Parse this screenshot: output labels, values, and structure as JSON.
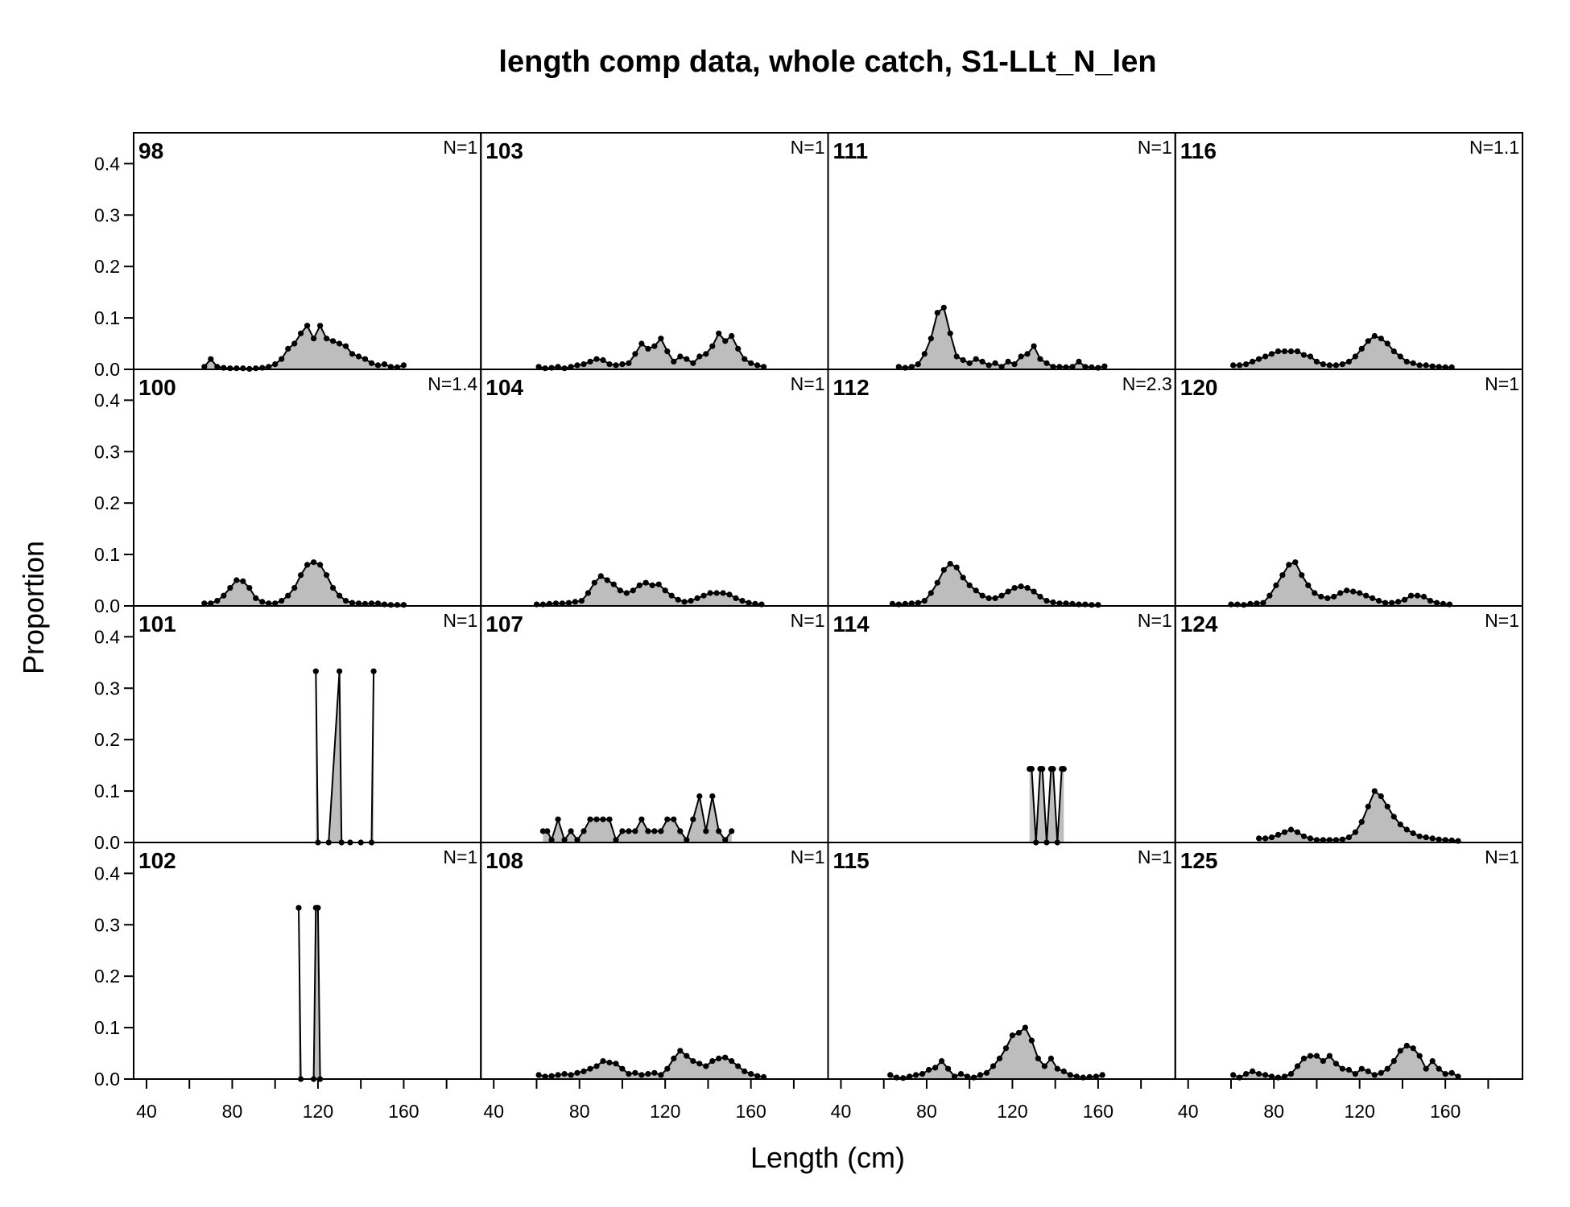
{
  "chart_data": {
    "type": "area",
    "title": "length comp data, whole catch, S1-LLt_N_len",
    "xlabel": "Length (cm)",
    "ylabel": "Proportion",
    "xlim": [
      34,
      196
    ],
    "ylim": [
      0,
      0.46
    ],
    "x_ticks": [
      40,
      80,
      120,
      160
    ],
    "y_ticks": [
      "0.0",
      "0.1",
      "0.2",
      "0.3",
      "0.4"
    ],
    "layout": "4x4 panels, columns filled top-to-bottom",
    "colors": {
      "fill": "#bdbdbd",
      "line": "#000000",
      "frame": "#000000"
    },
    "panels": [
      {
        "label": "98",
        "n_label": "N=1",
        "x": [
          67,
          70,
          73,
          76,
          79,
          82,
          85,
          88,
          91,
          94,
          97,
          100,
          103,
          106,
          109,
          112,
          115,
          118,
          121,
          124,
          127,
          130,
          133,
          136,
          139,
          142,
          145,
          148,
          151,
          154,
          157,
          160
        ],
        "values": [
          0.005,
          0.02,
          0.005,
          0.003,
          0.002,
          0.002,
          0.002,
          0.001,
          0.002,
          0.003,
          0.005,
          0.01,
          0.02,
          0.04,
          0.05,
          0.07,
          0.085,
          0.06,
          0.085,
          0.06,
          0.055,
          0.05,
          0.045,
          0.03,
          0.025,
          0.02,
          0.012,
          0.008,
          0.01,
          0.005,
          0.004,
          0.008
        ]
      },
      {
        "label": "100",
        "n_label": "N=1.4",
        "x": [
          67,
          70,
          73,
          76,
          79,
          82,
          85,
          88,
          91,
          94,
          97,
          100,
          103,
          106,
          109,
          112,
          115,
          118,
          121,
          124,
          127,
          130,
          133,
          136,
          139,
          142,
          145,
          148,
          151,
          154,
          157,
          160
        ],
        "values": [
          0.005,
          0.005,
          0.01,
          0.02,
          0.035,
          0.05,
          0.048,
          0.035,
          0.015,
          0.008,
          0.005,
          0.005,
          0.01,
          0.02,
          0.035,
          0.06,
          0.08,
          0.085,
          0.08,
          0.06,
          0.035,
          0.02,
          0.01,
          0.006,
          0.005,
          0.004,
          0.005,
          0.005,
          0.003,
          0.002,
          0.002,
          0.002
        ]
      },
      {
        "label": "101",
        "n_label": "N=1",
        "x": [
          119,
          120,
          125,
          130,
          131,
          135,
          140,
          145,
          146
        ],
        "values": [
          0.333,
          0,
          0,
          0.333,
          0,
          0,
          0,
          0,
          0.333
        ]
      },
      {
        "label": "102",
        "n_label": "N=1",
        "x": [
          111,
          112,
          118,
          119,
          120,
          121
        ],
        "values": [
          0.333,
          0,
          0,
          0.333,
          0.333,
          0
        ]
      },
      {
        "label": "103",
        "n_label": "N=1",
        "x": [
          61,
          64,
          67,
          70,
          73,
          76,
          79,
          82,
          85,
          88,
          91,
          94,
          97,
          100,
          103,
          106,
          109,
          112,
          115,
          118,
          121,
          124,
          127,
          130,
          133,
          136,
          139,
          142,
          145,
          148,
          151,
          154,
          157,
          160,
          163,
          166
        ],
        "values": [
          0.005,
          0.002,
          0.003,
          0.005,
          0.002,
          0.005,
          0.008,
          0.01,
          0.015,
          0.02,
          0.018,
          0.01,
          0.008,
          0.01,
          0.012,
          0.03,
          0.05,
          0.04,
          0.045,
          0.06,
          0.035,
          0.015,
          0.025,
          0.02,
          0.012,
          0.025,
          0.03,
          0.045,
          0.07,
          0.055,
          0.065,
          0.04,
          0.02,
          0.012,
          0.008,
          0.005
        ]
      },
      {
        "label": "104",
        "n_label": "N=1",
        "x": [
          60,
          63,
          66,
          69,
          72,
          75,
          78,
          81,
          84,
          87,
          90,
          93,
          96,
          99,
          102,
          105,
          108,
          111,
          114,
          117,
          120,
          123,
          126,
          129,
          132,
          135,
          138,
          141,
          144,
          147,
          150,
          153,
          156,
          159,
          162,
          165
        ],
        "values": [
          0.003,
          0.003,
          0.004,
          0.005,
          0.005,
          0.006,
          0.008,
          0.01,
          0.025,
          0.045,
          0.058,
          0.05,
          0.042,
          0.03,
          0.025,
          0.03,
          0.04,
          0.045,
          0.04,
          0.042,
          0.03,
          0.02,
          0.012,
          0.008,
          0.01,
          0.015,
          0.02,
          0.025,
          0.025,
          0.025,
          0.022,
          0.015,
          0.01,
          0.006,
          0.004,
          0.003
        ]
      },
      {
        "label": "107",
        "n_label": "N=1",
        "x": [
          63,
          65,
          67,
          70,
          73,
          76,
          79,
          82,
          85,
          88,
          91,
          94,
          97,
          100,
          103,
          106,
          109,
          112,
          115,
          118,
          121,
          124,
          127,
          130,
          133,
          136,
          139,
          142,
          145,
          148,
          151
        ],
        "values": [
          0.022,
          0.022,
          0.005,
          0.045,
          0.005,
          0.022,
          0.005,
          0.022,
          0.045,
          0.045,
          0.045,
          0.045,
          0.005,
          0.022,
          0.022,
          0.022,
          0.045,
          0.022,
          0.022,
          0.022,
          0.045,
          0.045,
          0.022,
          0.005,
          0.045,
          0.09,
          0.022,
          0.09,
          0.022,
          0.005,
          0.022
        ]
      },
      {
        "label": "108",
        "n_label": "N=1",
        "x": [
          61,
          64,
          67,
          70,
          73,
          76,
          79,
          82,
          85,
          88,
          91,
          94,
          97,
          100,
          103,
          106,
          109,
          112,
          115,
          118,
          121,
          124,
          127,
          130,
          133,
          136,
          139,
          142,
          145,
          148,
          151,
          154,
          157,
          160,
          163,
          166
        ],
        "values": [
          0.008,
          0.005,
          0.006,
          0.008,
          0.01,
          0.008,
          0.012,
          0.015,
          0.02,
          0.025,
          0.035,
          0.032,
          0.03,
          0.02,
          0.01,
          0.012,
          0.008,
          0.01,
          0.012,
          0.008,
          0.02,
          0.04,
          0.055,
          0.045,
          0.035,
          0.03,
          0.025,
          0.035,
          0.04,
          0.042,
          0.035,
          0.025,
          0.015,
          0.01,
          0.006,
          0.004
        ]
      },
      {
        "label": "111",
        "n_label": "N=1",
        "x": [
          67,
          70,
          73,
          76,
          79,
          82,
          85,
          88,
          91,
          94,
          97,
          100,
          103,
          106,
          109,
          112,
          115,
          118,
          121,
          124,
          127,
          130,
          133,
          136,
          139,
          142,
          145,
          148,
          151,
          154,
          157,
          160,
          163
        ],
        "values": [
          0.005,
          0.003,
          0.005,
          0.01,
          0.03,
          0.06,
          0.11,
          0.12,
          0.07,
          0.025,
          0.018,
          0.012,
          0.02,
          0.015,
          0.008,
          0.012,
          0.005,
          0.015,
          0.01,
          0.025,
          0.03,
          0.045,
          0.02,
          0.012,
          0.005,
          0.005,
          0.004,
          0.005,
          0.015,
          0.005,
          0.004,
          0.003,
          0.006
        ]
      },
      {
        "label": "112",
        "n_label": "N=2.3",
        "x": [
          64,
          67,
          70,
          73,
          76,
          79,
          82,
          85,
          88,
          91,
          94,
          97,
          100,
          103,
          106,
          109,
          112,
          115,
          118,
          121,
          124,
          127,
          130,
          133,
          136,
          139,
          142,
          145,
          148,
          151,
          154,
          157,
          160
        ],
        "values": [
          0.004,
          0.003,
          0.004,
          0.005,
          0.006,
          0.01,
          0.025,
          0.045,
          0.07,
          0.082,
          0.075,
          0.055,
          0.04,
          0.03,
          0.02,
          0.015,
          0.015,
          0.02,
          0.028,
          0.035,
          0.038,
          0.035,
          0.028,
          0.018,
          0.01,
          0.007,
          0.005,
          0.005,
          0.004,
          0.003,
          0.003,
          0.002,
          0.002
        ]
      },
      {
        "label": "114",
        "n_label": "N=1",
        "x": [
          128,
          129,
          131,
          133,
          134,
          136,
          138,
          139,
          141,
          143,
          144
        ],
        "values": [
          0.143,
          0.143,
          0,
          0.143,
          0.143,
          0,
          0.143,
          0.143,
          0,
          0.143,
          0.143
        ]
      },
      {
        "label": "115",
        "n_label": "N=1",
        "x": [
          63,
          66,
          69,
          72,
          75,
          78,
          81,
          84,
          87,
          90,
          93,
          96,
          99,
          102,
          105,
          108,
          111,
          114,
          117,
          120,
          123,
          126,
          129,
          132,
          135,
          138,
          141,
          144,
          147,
          150,
          153,
          156,
          159,
          162
        ],
        "values": [
          0.008,
          0.003,
          0.002,
          0.005,
          0.008,
          0.01,
          0.018,
          0.022,
          0.035,
          0.02,
          0.005,
          0.01,
          0.005,
          0.003,
          0.008,
          0.012,
          0.025,
          0.04,
          0.06,
          0.085,
          0.09,
          0.1,
          0.075,
          0.04,
          0.025,
          0.04,
          0.02,
          0.015,
          0.008,
          0.005,
          0.003,
          0.004,
          0.005,
          0.008
        ]
      },
      {
        "label": "116",
        "n_label": "N=1.1",
        "x": [
          61,
          64,
          67,
          70,
          73,
          76,
          79,
          82,
          85,
          88,
          91,
          94,
          97,
          100,
          103,
          106,
          109,
          112,
          115,
          118,
          121,
          124,
          127,
          130,
          133,
          136,
          139,
          142,
          145,
          148,
          151,
          154,
          157,
          160,
          163
        ],
        "values": [
          0.008,
          0.008,
          0.01,
          0.015,
          0.02,
          0.025,
          0.03,
          0.035,
          0.035,
          0.035,
          0.035,
          0.028,
          0.025,
          0.015,
          0.01,
          0.008,
          0.008,
          0.01,
          0.015,
          0.025,
          0.04,
          0.055,
          0.065,
          0.06,
          0.05,
          0.035,
          0.025,
          0.015,
          0.012,
          0.008,
          0.008,
          0.006,
          0.005,
          0.004,
          0.004
        ]
      },
      {
        "label": "120",
        "n_label": "N=1",
        "x": [
          60,
          63,
          66,
          69,
          72,
          75,
          78,
          81,
          84,
          87,
          90,
          93,
          96,
          99,
          102,
          105,
          108,
          111,
          114,
          117,
          120,
          123,
          126,
          129,
          132,
          135,
          138,
          141,
          144,
          147,
          150,
          153,
          156,
          159,
          162
        ],
        "values": [
          0.003,
          0.003,
          0.002,
          0.004,
          0.005,
          0.006,
          0.02,
          0.04,
          0.06,
          0.08,
          0.085,
          0.06,
          0.04,
          0.025,
          0.018,
          0.015,
          0.018,
          0.025,
          0.03,
          0.028,
          0.025,
          0.02,
          0.015,
          0.01,
          0.006,
          0.006,
          0.008,
          0.012,
          0.02,
          0.02,
          0.018,
          0.01,
          0.006,
          0.004,
          0.003
        ]
      },
      {
        "label": "124",
        "n_label": "N=1",
        "x": [
          73,
          76,
          79,
          82,
          85,
          88,
          91,
          94,
          97,
          100,
          103,
          106,
          109,
          112,
          115,
          118,
          121,
          124,
          127,
          130,
          133,
          136,
          139,
          142,
          145,
          148,
          151,
          154,
          157,
          160,
          163,
          166
        ],
        "values": [
          0.008,
          0.008,
          0.01,
          0.015,
          0.02,
          0.025,
          0.02,
          0.012,
          0.008,
          0.005,
          0.005,
          0.005,
          0.005,
          0.006,
          0.01,
          0.02,
          0.04,
          0.07,
          0.1,
          0.09,
          0.07,
          0.05,
          0.035,
          0.025,
          0.018,
          0.012,
          0.01,
          0.008,
          0.006,
          0.005,
          0.004,
          0.003
        ]
      },
      {
        "label": "125",
        "n_label": "N=1",
        "x": [
          61,
          64,
          67,
          70,
          73,
          76,
          79,
          82,
          85,
          88,
          91,
          94,
          97,
          100,
          103,
          106,
          109,
          112,
          115,
          118,
          121,
          124,
          127,
          130,
          133,
          136,
          139,
          142,
          145,
          148,
          151,
          154,
          157,
          160,
          163,
          166
        ],
        "values": [
          0.008,
          0.003,
          0.01,
          0.015,
          0.01,
          0.008,
          0.005,
          0.003,
          0.005,
          0.01,
          0.025,
          0.04,
          0.045,
          0.045,
          0.035,
          0.045,
          0.03,
          0.02,
          0.018,
          0.01,
          0.02,
          0.015,
          0.008,
          0.012,
          0.02,
          0.035,
          0.055,
          0.065,
          0.06,
          0.045,
          0.02,
          0.035,
          0.02,
          0.01,
          0.012,
          0.005
        ]
      }
    ]
  }
}
